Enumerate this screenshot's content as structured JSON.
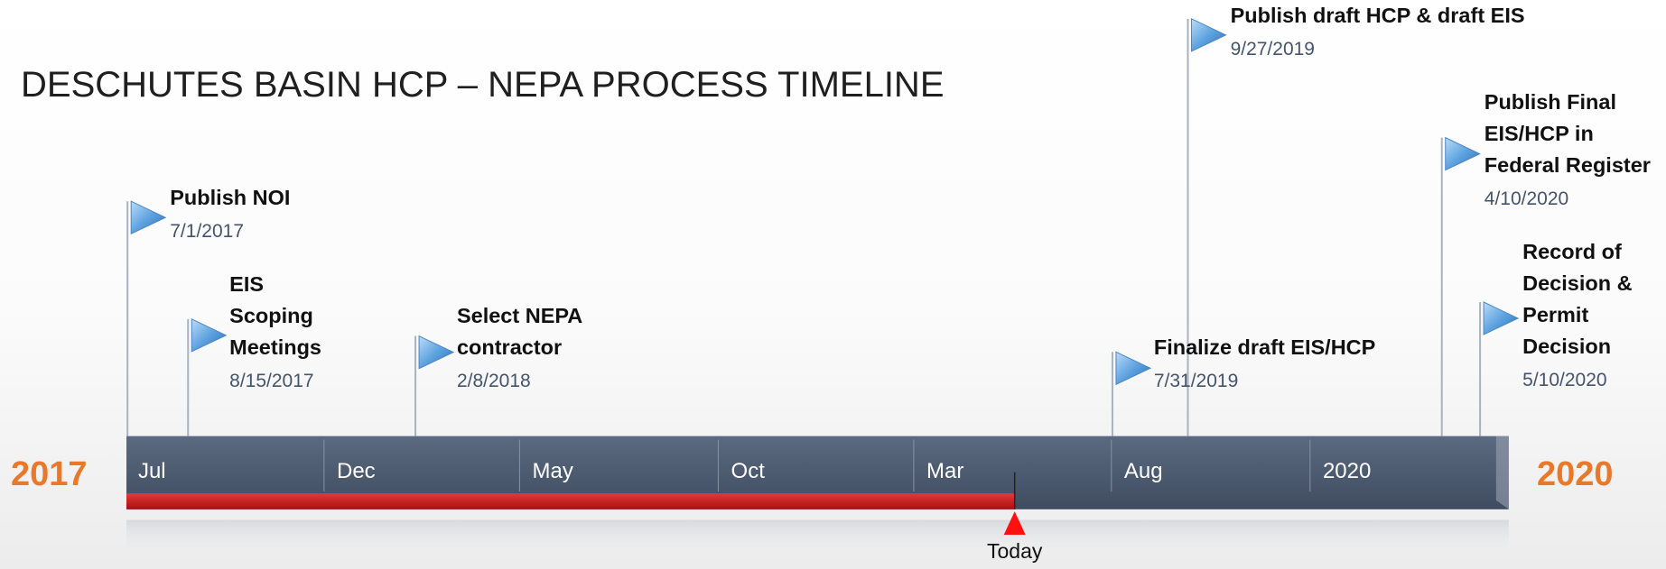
{
  "title": "DESCHUTES BASIN HCP – NEPA PROCESS TIMELINE",
  "start_year": "2017",
  "end_year": "2020",
  "axis_labels": [
    "Jul",
    "Dec",
    "May",
    "Oct",
    "Mar",
    "Aug",
    "2020"
  ],
  "milestones": [
    {
      "title_lines": [
        "Publish NOI"
      ],
      "date": "7/1/2017"
    },
    {
      "title_lines": [
        "EIS",
        "Scoping",
        "Meetings"
      ],
      "date": "8/15/2017"
    },
    {
      "title_lines": [
        "Select NEPA",
        "contractor"
      ],
      "date": "2/8/2018"
    },
    {
      "title_lines": [
        "Finalize draft EIS/HCP"
      ],
      "date": "7/31/2019"
    },
    {
      "title_lines": [
        "Publish draft HCP & draft EIS"
      ],
      "date": "9/27/2019"
    },
    {
      "title_lines": [
        "Publish Final",
        "EIS/HCP in",
        "Federal Register"
      ],
      "date": "4/10/2020"
    },
    {
      "title_lines": [
        "Record of",
        "Decision &",
        "Permit",
        "Decision"
      ],
      "date": "5/10/2020"
    }
  ],
  "today_label": "Today"
}
